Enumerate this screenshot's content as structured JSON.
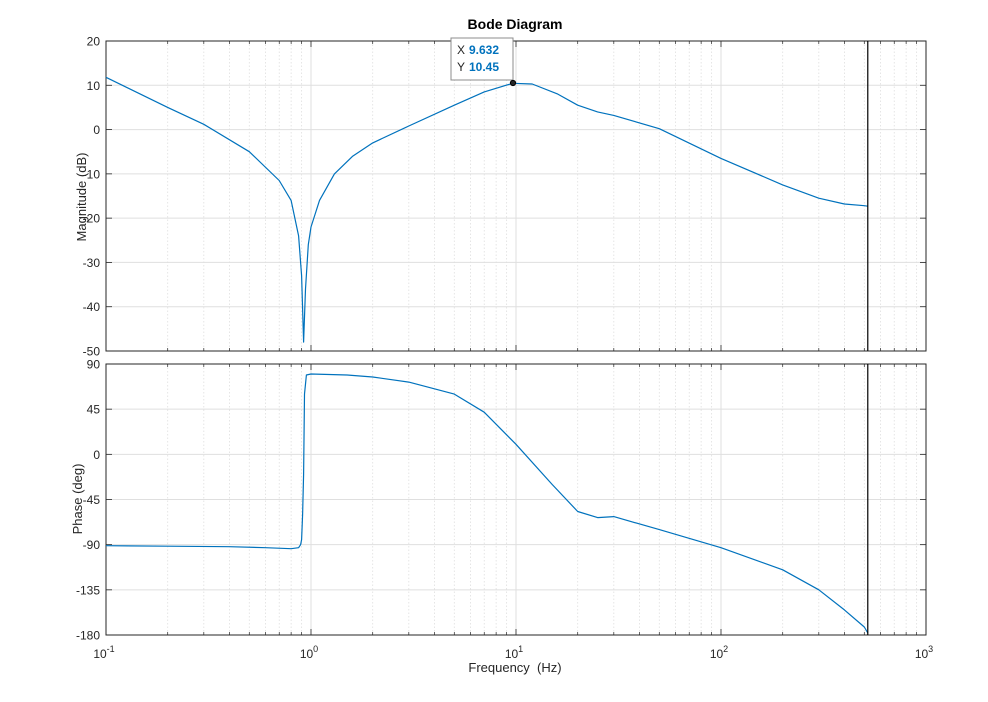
{
  "chart_data": [
    {
      "type": "line",
      "title": "Bode Diagram",
      "ylabel": "Magnitude (dB)",
      "xscale": "log",
      "xlim": [
        0.1,
        1000
      ],
      "ylim": [
        -50,
        20
      ],
      "yticks": [
        20,
        10,
        0,
        -10,
        -20,
        -30,
        -40,
        -50
      ],
      "ytick_labels": [
        "20",
        "10",
        "0",
        "-10",
        "-20",
        "-30",
        "-40",
        "-50"
      ],
      "grid": true,
      "series": [
        {
          "x": [
            0.1,
            0.2,
            0.3,
            0.5,
            0.7,
            0.8,
            0.87,
            0.9,
            0.92,
            0.94,
            0.97,
            1.0,
            1.1,
            1.3,
            1.6,
            2,
            3,
            5,
            7,
            9.632,
            12,
            16,
            20,
            25,
            30,
            50,
            100,
            200,
            300,
            400,
            500,
            520
          ],
          "y": [
            11.8,
            5,
            1.2,
            -5,
            -11.5,
            -16,
            -24,
            -33,
            -48,
            -36,
            -26,
            -22,
            -16,
            -10,
            -6,
            -3,
            0.8,
            5.5,
            8.5,
            10.45,
            10.3,
            8,
            5.5,
            4,
            3.2,
            0.2,
            -6.5,
            -12.5,
            -15.5,
            -16.8,
            -17.2,
            -17.3
          ]
        }
      ]
    },
    {
      "type": "line",
      "xlabel": "Frequency  (Hz)",
      "ylabel": "Phase (deg)",
      "xscale": "log",
      "xlim": [
        0.1,
        1000
      ],
      "ylim": [
        -180,
        90
      ],
      "xtick_bases": [
        "10",
        "10",
        "10",
        "10",
        "10"
      ],
      "xtick_exponents": [
        "-1",
        "0",
        "1",
        "2",
        "3"
      ],
      "yticks": [
        90,
        45,
        0,
        -45,
        -90,
        -135,
        -180
      ],
      "ytick_labels": [
        "90",
        "45",
        "0",
        "-45",
        "-90",
        "-135",
        "-180"
      ],
      "grid": true,
      "series": [
        {
          "x": [
            0.1,
            0.2,
            0.4,
            0.6,
            0.8,
            0.87,
            0.89,
            0.9,
            0.91,
            0.92,
            0.93,
            0.95,
            1.0,
            1.5,
            2,
            3,
            5,
            7,
            10,
            15,
            20,
            25,
            30,
            50,
            100,
            200,
            300,
            400,
            500,
            520
          ],
          "y": [
            -91,
            -91.5,
            -92,
            -93,
            -94,
            -93,
            -90,
            -85,
            -60,
            -20,
            60,
            79,
            80,
            79,
            77,
            72,
            60,
            42,
            10,
            -30,
            -57,
            -63,
            -62,
            -75,
            -93,
            -115,
            -135,
            -155,
            -172,
            -178
          ]
        }
      ]
    }
  ],
  "datatip": {
    "x_label": "X",
    "x_value": "9.632",
    "y_label": "Y",
    "y_value": "10.45"
  },
  "colors": {
    "line": "#0072BD",
    "tip_value": "#0072BD",
    "axes": "#262626",
    "grid": "#DFDFDF",
    "marker_line": "#000000"
  },
  "marker_frequency": 520
}
